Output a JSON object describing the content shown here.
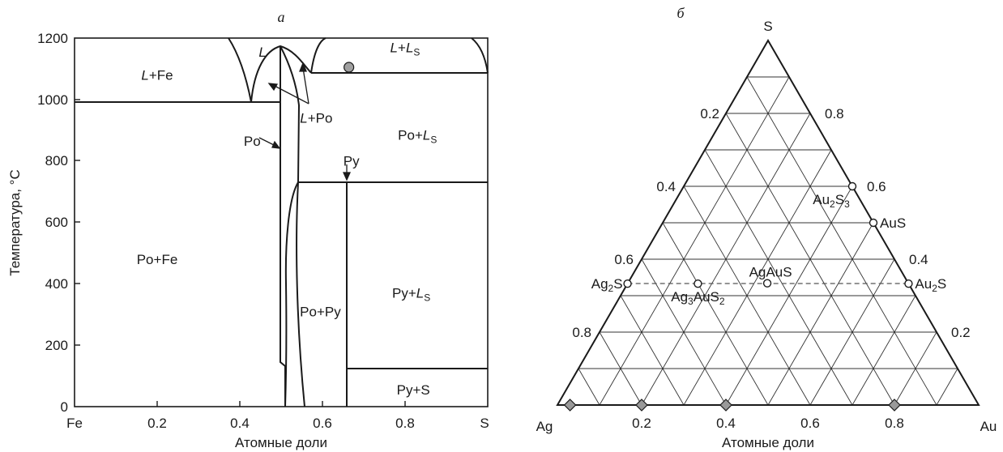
{
  "chart_data": [
    {
      "type": "phase-diagram",
      "panel_label": "а",
      "xlabel": "Атомные доли",
      "ylabel": "Температура, °С",
      "x_end_labels": [
        "Fe",
        "S"
      ],
      "x_ticks": [
        "0.2",
        "0.4",
        "0.6",
        "0.8"
      ],
      "y_ticks": [
        "0",
        "200",
        "400",
        "600",
        "800",
        "1000",
        "1200"
      ],
      "xlim": [
        0,
        1
      ],
      "ylim": [
        0,
        1200
      ],
      "fields": [
        {
          "label": "L+Fe",
          "x": 0.2,
          "y": 1080
        },
        {
          "label": "L",
          "x": 0.455,
          "y": 1155
        },
        {
          "label": "L+LS",
          "x": 0.8,
          "y": 1170
        },
        {
          "label": "L+Po",
          "x": 0.585,
          "y": 940
        },
        {
          "label": "Po+LS",
          "x": 0.83,
          "y": 885
        },
        {
          "label": "Po",
          "x": 0.43,
          "y": 865
        },
        {
          "label": "Py",
          "x": 0.67,
          "y": 800
        },
        {
          "label": "Po+Fe",
          "x": 0.2,
          "y": 480
        },
        {
          "label": "Po+Py",
          "x": 0.595,
          "y": 310
        },
        {
          "label": "Py+LS",
          "x": 0.815,
          "y": 370
        },
        {
          "label": "Py+S",
          "x": 0.82,
          "y": 55
        }
      ],
      "horizontal_lines": [
        {
          "y": 988,
          "x": [
            0,
            0.5
          ]
        },
        {
          "y": 1083,
          "x": [
            0.55,
            1
          ]
        },
        {
          "y": 743,
          "x": [
            0.54,
            1
          ]
        },
        {
          "y": 120,
          "x": [
            0.665,
            1
          ]
        }
      ],
      "marker_point": {
        "x": 0.664,
        "y": 1105
      }
    },
    {
      "type": "ternary",
      "panel_label": "б",
      "xlabel": "Атомные доли",
      "corners": [
        "Ag",
        "Au",
        "S"
      ],
      "base_ticks": [
        "0.2",
        "0.4",
        "0.6",
        "0.8"
      ],
      "right_edge_ticks": [
        "0.2",
        "0.4",
        "0.6",
        "0.8"
      ],
      "left_edge_ticks": [
        "0.2",
        "0.4",
        "0.6",
        "0.8"
      ],
      "grid_step": 0.1,
      "compounds": [
        {
          "label": "Ag2S",
          "Ag": 0.667,
          "Au": 0.0,
          "S": 0.333
        },
        {
          "label": "Ag3AuS2",
          "Ag": 0.5,
          "Au": 0.167,
          "S": 0.333
        },
        {
          "label": "AgAuS",
          "Ag": 0.333,
          "Au": 0.333,
          "S": 0.333
        },
        {
          "label": "Au2S",
          "Ag": 0.0,
          "Au": 0.667,
          "S": 0.333
        },
        {
          "label": "AuS",
          "Ag": 0.0,
          "Au": 0.5,
          "S": 0.5
        },
        {
          "label": "Au2S3",
          "Ag": 0.0,
          "Au": 0.4,
          "S": 0.6
        }
      ],
      "diamonds_on_base": [
        0.03,
        0.2,
        0.4,
        0.8
      ]
    }
  ]
}
